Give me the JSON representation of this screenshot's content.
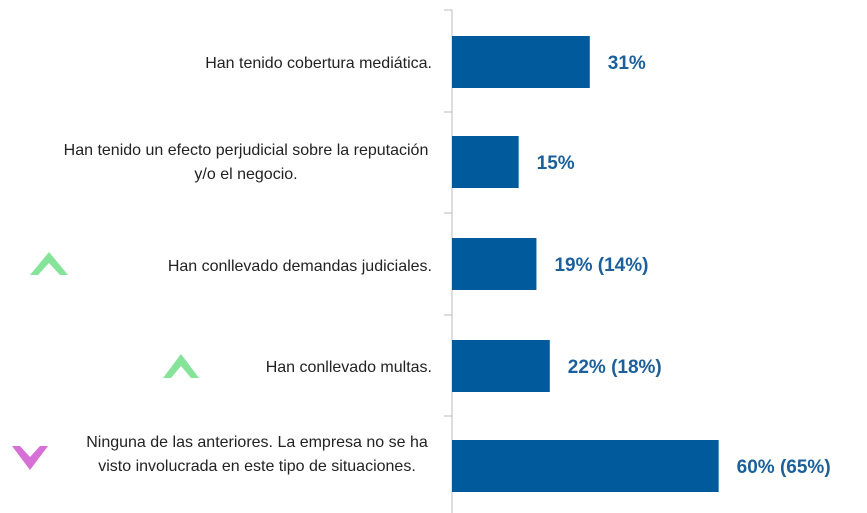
{
  "chart_data": {
    "type": "bar",
    "orientation": "horizontal",
    "categories": [
      "Han tenido cobertura mediática.",
      "Han tenido un efecto perjudicial sobre la reputación y/o el negocio.",
      "Han conllevado demandas judiciales.",
      "Han conllevado multas.",
      "Ninguna de las anteriores. La empresa no se ha visto involucrada en este tipo de situaciones."
    ],
    "values": [
      31,
      15,
      19,
      22,
      60
    ],
    "value_labels": [
      "31%",
      "15%",
      "19% (14%)",
      "22% (18%)",
      "60% (65%)"
    ],
    "color": "#005a9c",
    "xlim": [
      0,
      90
    ]
  }
}
